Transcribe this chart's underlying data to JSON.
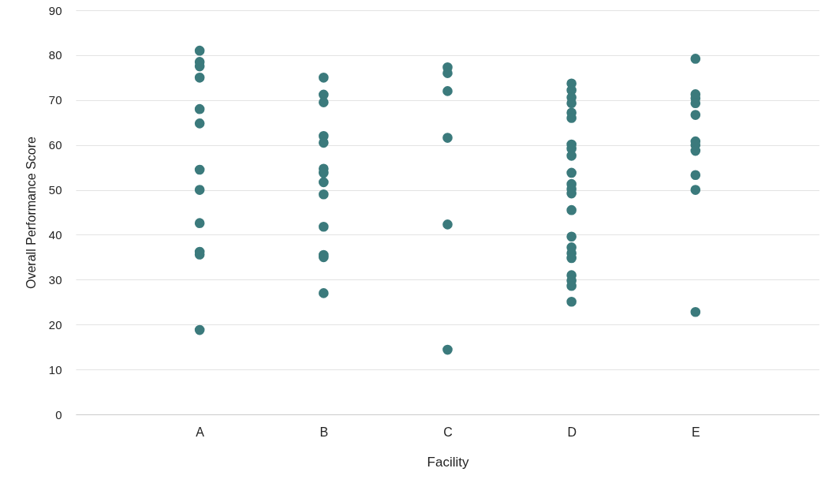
{
  "chart_data": {
    "type": "scatter",
    "xlabel": "Facility",
    "ylabel": "Overall Performance Score",
    "categories": [
      "A",
      "B",
      "C",
      "D",
      "E"
    ],
    "ylim": [
      0,
      90
    ],
    "yticks": [
      0,
      10,
      20,
      30,
      40,
      50,
      60,
      70,
      80,
      90
    ],
    "grid": "y",
    "marker": "circle",
    "series": [
      {
        "color": "#3b7a7c",
        "x": [
          "A",
          "A",
          "A",
          "A",
          "A",
          "A",
          "A",
          "A",
          "A",
          "A",
          "A",
          "A",
          "B",
          "B",
          "B",
          "B",
          "B",
          "B",
          "B",
          "B",
          "B",
          "B",
          "B",
          "B",
          "B",
          "C",
          "C",
          "C",
          "C",
          "C",
          "C",
          "D",
          "D",
          "D",
          "D",
          "D",
          "D",
          "D",
          "D",
          "D",
          "D",
          "D",
          "D",
          "D",
          "D",
          "D",
          "D",
          "D",
          "D",
          "D",
          "D",
          "D",
          "D",
          "E",
          "E",
          "E",
          "E",
          "E",
          "E",
          "E",
          "E",
          "E",
          "E",
          "E"
        ],
        "values": [
          81,
          78.5,
          77.5,
          75,
          68,
          64.8,
          54.5,
          50,
          42.6,
          36.2,
          35.6,
          18.8,
          75,
          71.2,
          69.5,
          62,
          60.5,
          54.7,
          53.8,
          51.7,
          49,
          41.8,
          35.5,
          35,
          27,
          77.3,
          76,
          72,
          61.6,
          42.3,
          14.4,
          73.7,
          72.2,
          70.6,
          69.3,
          67.2,
          66,
          60.1,
          59.2,
          57.6,
          53.8,
          51.3,
          50.2,
          49.2,
          45.5,
          39.6,
          37.2,
          35.9,
          34.8,
          31,
          29.8,
          28.6,
          25.1,
          79.2,
          71.3,
          70.4,
          69.3,
          66.7,
          60.8,
          60,
          58.7,
          53.3,
          50,
          22.8
        ]
      }
    ]
  }
}
